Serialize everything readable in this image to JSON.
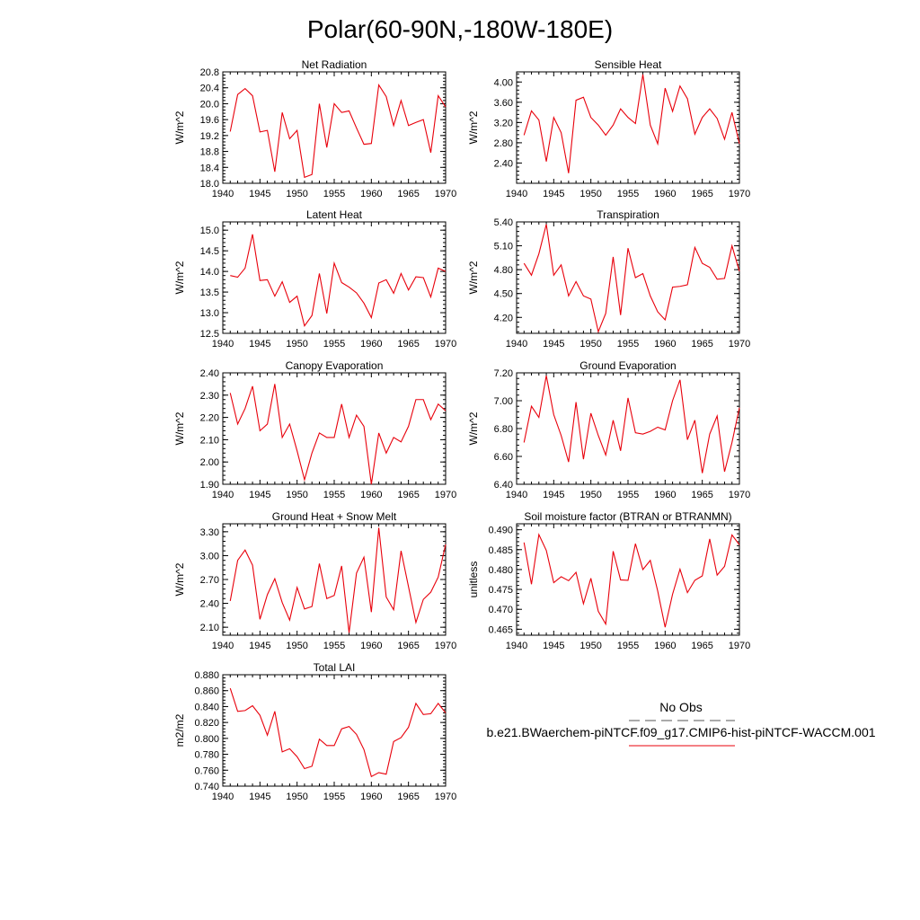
{
  "figure_title": "Polar(60-90N,-180W-180E)",
  "legend": {
    "obs_label": "No Obs",
    "case_label": "b.e21.BWaerchem-piNTCF.f09_g17.CMIP6-hist-piNTCF-WACCM.001",
    "obs_color": "#555555",
    "case_color": "#e8000b"
  },
  "chart_data": [
    {
      "type": "line",
      "title": "Net Radiation",
      "ylabel": "W/m^2",
      "xlim": [
        1940,
        1970
      ],
      "ylim": [
        18.0,
        20.8
      ],
      "xticks": [
        "1940",
        "1945",
        "1950",
        "1955",
        "1960",
        "1965",
        "1970"
      ],
      "yticks": [
        "18.0",
        "18.4",
        "18.8",
        "19.2",
        "19.6",
        "20.0",
        "20.4",
        "20.8"
      ],
      "x": [
        1941,
        1942,
        1943,
        1944,
        1945,
        1946,
        1947,
        1948,
        1949,
        1950,
        1951,
        1952,
        1953,
        1954,
        1955,
        1956,
        1957,
        1958,
        1959,
        1960,
        1961,
        1962,
        1963,
        1964,
        1965,
        1966,
        1967,
        1968,
        1969,
        1970
      ],
      "series": [
        {
          "color": "#e8000b",
          "values": [
            19.3,
            20.23,
            20.38,
            20.2,
            19.29,
            19.33,
            18.29,
            19.78,
            19.12,
            19.33,
            18.15,
            18.22,
            20.0,
            18.9,
            20.0,
            19.78,
            19.82,
            19.39,
            18.98,
            19.0,
            20.47,
            20.18,
            19.45,
            20.08,
            19.45,
            19.53,
            19.6,
            18.77,
            20.2,
            19.92
          ]
        }
      ]
    },
    {
      "type": "line",
      "title": "Sensible Heat",
      "ylabel": "W/m^2",
      "xlim": [
        1940,
        1970
      ],
      "ylim": [
        2.0,
        4.2
      ],
      "xticks": [
        "1940",
        "1945",
        "1950",
        "1955",
        "1960",
        "1965",
        "1970"
      ],
      "yticks": [
        "2.40",
        "2.80",
        "3.20",
        "3.60",
        "4.00"
      ],
      "x": [
        1941,
        1942,
        1943,
        1944,
        1945,
        1946,
        1947,
        1948,
        1949,
        1950,
        1951,
        1952,
        1953,
        1954,
        1955,
        1956,
        1957,
        1958,
        1959,
        1960,
        1961,
        1962,
        1963,
        1964,
        1965,
        1966,
        1967,
        1968,
        1969,
        1970
      ],
      "series": [
        {
          "color": "#e8000b",
          "values": [
            2.95,
            3.43,
            3.25,
            2.43,
            3.3,
            3.0,
            2.2,
            3.64,
            3.7,
            3.3,
            3.15,
            2.95,
            3.15,
            3.47,
            3.3,
            3.18,
            4.15,
            3.15,
            2.78,
            3.88,
            3.42,
            3.92,
            3.67,
            2.97,
            3.3,
            3.47,
            3.28,
            2.87,
            3.4,
            2.78
          ]
        }
      ]
    },
    {
      "type": "line",
      "title": "Latent Heat",
      "ylabel": "W/m^2",
      "xlim": [
        1940,
        1970
      ],
      "ylim": [
        12.5,
        15.2
      ],
      "xticks": [
        "1940",
        "1945",
        "1950",
        "1955",
        "1960",
        "1965",
        "1970"
      ],
      "yticks": [
        "12.5",
        "13.0",
        "13.5",
        "14.0",
        "14.5",
        "15.0"
      ],
      "x": [
        1941,
        1942,
        1943,
        1944,
        1945,
        1946,
        1947,
        1948,
        1949,
        1950,
        1951,
        1952,
        1953,
        1954,
        1955,
        1956,
        1957,
        1958,
        1959,
        1960,
        1961,
        1962,
        1963,
        1964,
        1965,
        1966,
        1967,
        1968,
        1969,
        1970
      ],
      "series": [
        {
          "color": "#e8000b",
          "values": [
            13.9,
            13.86,
            14.08,
            14.9,
            13.78,
            13.8,
            13.4,
            13.75,
            13.25,
            13.4,
            12.68,
            12.93,
            13.95,
            12.98,
            14.2,
            13.73,
            13.62,
            13.48,
            13.23,
            12.88,
            13.72,
            13.8,
            13.47,
            13.95,
            13.55,
            13.87,
            13.85,
            13.38,
            14.08,
            14.0
          ]
        }
      ]
    },
    {
      "type": "line",
      "title": "Transpiration",
      "ylabel": "W/m^2",
      "xlim": [
        1940,
        1970
      ],
      "ylim": [
        4.0,
        5.4
      ],
      "xticks": [
        "1940",
        "1945",
        "1950",
        "1955",
        "1960",
        "1965",
        "1970"
      ],
      "yticks": [
        "4.20",
        "4.50",
        "4.80",
        "5.10",
        "5.40"
      ],
      "x": [
        1941,
        1942,
        1943,
        1944,
        1945,
        1946,
        1947,
        1948,
        1949,
        1950,
        1951,
        1952,
        1953,
        1954,
        1955,
        1956,
        1957,
        1958,
        1959,
        1960,
        1961,
        1962,
        1963,
        1964,
        1965,
        1966,
        1967,
        1968,
        1969,
        1970
      ],
      "series": [
        {
          "color": "#e8000b",
          "values": [
            4.88,
            4.73,
            5.0,
            5.37,
            4.73,
            4.86,
            4.47,
            4.65,
            4.47,
            4.43,
            4.02,
            4.25,
            4.96,
            4.23,
            5.07,
            4.7,
            4.75,
            4.47,
            4.27,
            4.17,
            4.58,
            4.59,
            4.61,
            5.08,
            4.88,
            4.83,
            4.68,
            4.69,
            5.1,
            4.78
          ]
        }
      ]
    },
    {
      "type": "line",
      "title": "Canopy Evaporation",
      "ylabel": "W/m^2",
      "xlim": [
        1940,
        1970
      ],
      "ylim": [
        1.9,
        2.4
      ],
      "xticks": [
        "1940",
        "1945",
        "1950",
        "1955",
        "1960",
        "1965",
        "1970"
      ],
      "yticks": [
        "1.90",
        "2.00",
        "2.10",
        "2.20",
        "2.30",
        "2.40"
      ],
      "x": [
        1941,
        1942,
        1943,
        1944,
        1945,
        1946,
        1947,
        1948,
        1949,
        1950,
        1951,
        1952,
        1953,
        1954,
        1955,
        1956,
        1957,
        1958,
        1959,
        1960,
        1961,
        1962,
        1963,
        1964,
        1965,
        1966,
        1967,
        1968,
        1969,
        1970
      ],
      "series": [
        {
          "color": "#e8000b",
          "values": [
            2.31,
            2.17,
            2.24,
            2.34,
            2.14,
            2.17,
            2.35,
            2.11,
            2.17,
            2.05,
            1.92,
            2.04,
            2.13,
            2.11,
            2.11,
            2.26,
            2.11,
            2.21,
            2.16,
            1.9,
            2.13,
            2.04,
            2.11,
            2.09,
            2.16,
            2.28,
            2.28,
            2.19,
            2.26,
            2.23
          ]
        }
      ]
    },
    {
      "type": "line",
      "title": "Ground Evaporation",
      "ylabel": "W/m^2",
      "xlim": [
        1940,
        1970
      ],
      "ylim": [
        6.4,
        7.2
      ],
      "xticks": [
        "1940",
        "1945",
        "1950",
        "1955",
        "1960",
        "1965",
        "1970"
      ],
      "yticks": [
        "6.40",
        "6.60",
        "6.80",
        "7.00",
        "7.20"
      ],
      "x": [
        1941,
        1942,
        1943,
        1944,
        1945,
        1946,
        1947,
        1948,
        1949,
        1950,
        1951,
        1952,
        1953,
        1954,
        1955,
        1956,
        1957,
        1958,
        1959,
        1960,
        1961,
        1962,
        1963,
        1964,
        1965,
        1966,
        1967,
        1968,
        1969,
        1970
      ],
      "series": [
        {
          "color": "#e8000b",
          "values": [
            6.7,
            6.96,
            6.88,
            7.18,
            6.9,
            6.75,
            6.56,
            6.99,
            6.58,
            6.91,
            6.75,
            6.61,
            6.86,
            6.64,
            7.02,
            6.77,
            6.76,
            6.78,
            6.81,
            6.79,
            7.0,
            7.15,
            6.72,
            6.86,
            6.48,
            6.76,
            6.89,
            6.49,
            6.7,
            6.95
          ]
        }
      ]
    },
    {
      "type": "line",
      "title": "Ground Heat + Snow Melt",
      "ylabel": "W/m^2",
      "xlim": [
        1940,
        1970
      ],
      "ylim": [
        2.0,
        3.4
      ],
      "xticks": [
        "1940",
        "1945",
        "1950",
        "1955",
        "1960",
        "1965",
        "1970"
      ],
      "yticks": [
        "2.10",
        "2.40",
        "2.70",
        "3.00",
        "3.30"
      ],
      "x": [
        1941,
        1942,
        1943,
        1944,
        1945,
        1946,
        1947,
        1948,
        1949,
        1950,
        1951,
        1952,
        1953,
        1954,
        1955,
        1956,
        1957,
        1958,
        1959,
        1960,
        1961,
        1962,
        1963,
        1964,
        1965,
        1966,
        1967,
        1968,
        1969,
        1970
      ],
      "series": [
        {
          "color": "#e8000b",
          "values": [
            2.43,
            2.94,
            3.07,
            2.88,
            2.2,
            2.51,
            2.71,
            2.41,
            2.19,
            2.6,
            2.33,
            2.36,
            2.9,
            2.46,
            2.5,
            2.87,
            2.03,
            2.78,
            2.98,
            2.29,
            3.35,
            2.48,
            2.32,
            3.06,
            2.61,
            2.16,
            2.45,
            2.54,
            2.73,
            3.14
          ]
        }
      ]
    },
    {
      "type": "line",
      "title": "Soil moisture factor (BTRAN or BTRANMN)",
      "ylabel": "unitless",
      "xlim": [
        1940,
        1970
      ],
      "ylim": [
        0.4635,
        0.4915
      ],
      "xticks": [
        "1940",
        "1945",
        "1950",
        "1955",
        "1960",
        "1965",
        "1970"
      ],
      "yticks": [
        "0.465",
        "0.470",
        "0.475",
        "0.480",
        "0.485",
        "0.490"
      ],
      "x": [
        1941,
        1942,
        1943,
        1944,
        1945,
        1946,
        1947,
        1948,
        1949,
        1950,
        1951,
        1952,
        1953,
        1954,
        1955,
        1956,
        1957,
        1958,
        1959,
        1960,
        1961,
        1962,
        1963,
        1964,
        1965,
        1966,
        1967,
        1968,
        1969,
        1970
      ],
      "series": [
        {
          "color": "#e8000b",
          "values": [
            0.4868,
            0.4763,
            0.4888,
            0.4848,
            0.4767,
            0.4782,
            0.4772,
            0.4793,
            0.4714,
            0.4778,
            0.4695,
            0.4663,
            0.4846,
            0.4774,
            0.4773,
            0.4865,
            0.48,
            0.4823,
            0.4746,
            0.4655,
            0.4738,
            0.4801,
            0.4742,
            0.4773,
            0.4784,
            0.4877,
            0.4786,
            0.4808,
            0.4887,
            0.4862
          ]
        }
      ]
    },
    {
      "type": "line",
      "title": "Total LAI",
      "ylabel": "m2/m2",
      "xlim": [
        1940,
        1970
      ],
      "ylim": [
        0.74,
        0.88
      ],
      "xticks": [
        "1940",
        "1945",
        "1950",
        "1955",
        "1960",
        "1965",
        "1970"
      ],
      "yticks": [
        "0.740",
        "0.760",
        "0.780",
        "0.800",
        "0.820",
        "0.840",
        "0.860",
        "0.880"
      ],
      "x": [
        1941,
        1942,
        1943,
        1944,
        1945,
        1946,
        1947,
        1948,
        1949,
        1950,
        1951,
        1952,
        1953,
        1954,
        1955,
        1956,
        1957,
        1958,
        1959,
        1960,
        1961,
        1962,
        1963,
        1964,
        1965,
        1966,
        1967,
        1968,
        1969,
        1970
      ],
      "series": [
        {
          "color": "#e8000b",
          "values": [
            0.863,
            0.834,
            0.835,
            0.841,
            0.829,
            0.804,
            0.834,
            0.783,
            0.787,
            0.777,
            0.762,
            0.765,
            0.799,
            0.791,
            0.791,
            0.812,
            0.815,
            0.805,
            0.786,
            0.752,
            0.757,
            0.755,
            0.796,
            0.801,
            0.814,
            0.844,
            0.83,
            0.831,
            0.844,
            0.832
          ]
        }
      ]
    }
  ]
}
